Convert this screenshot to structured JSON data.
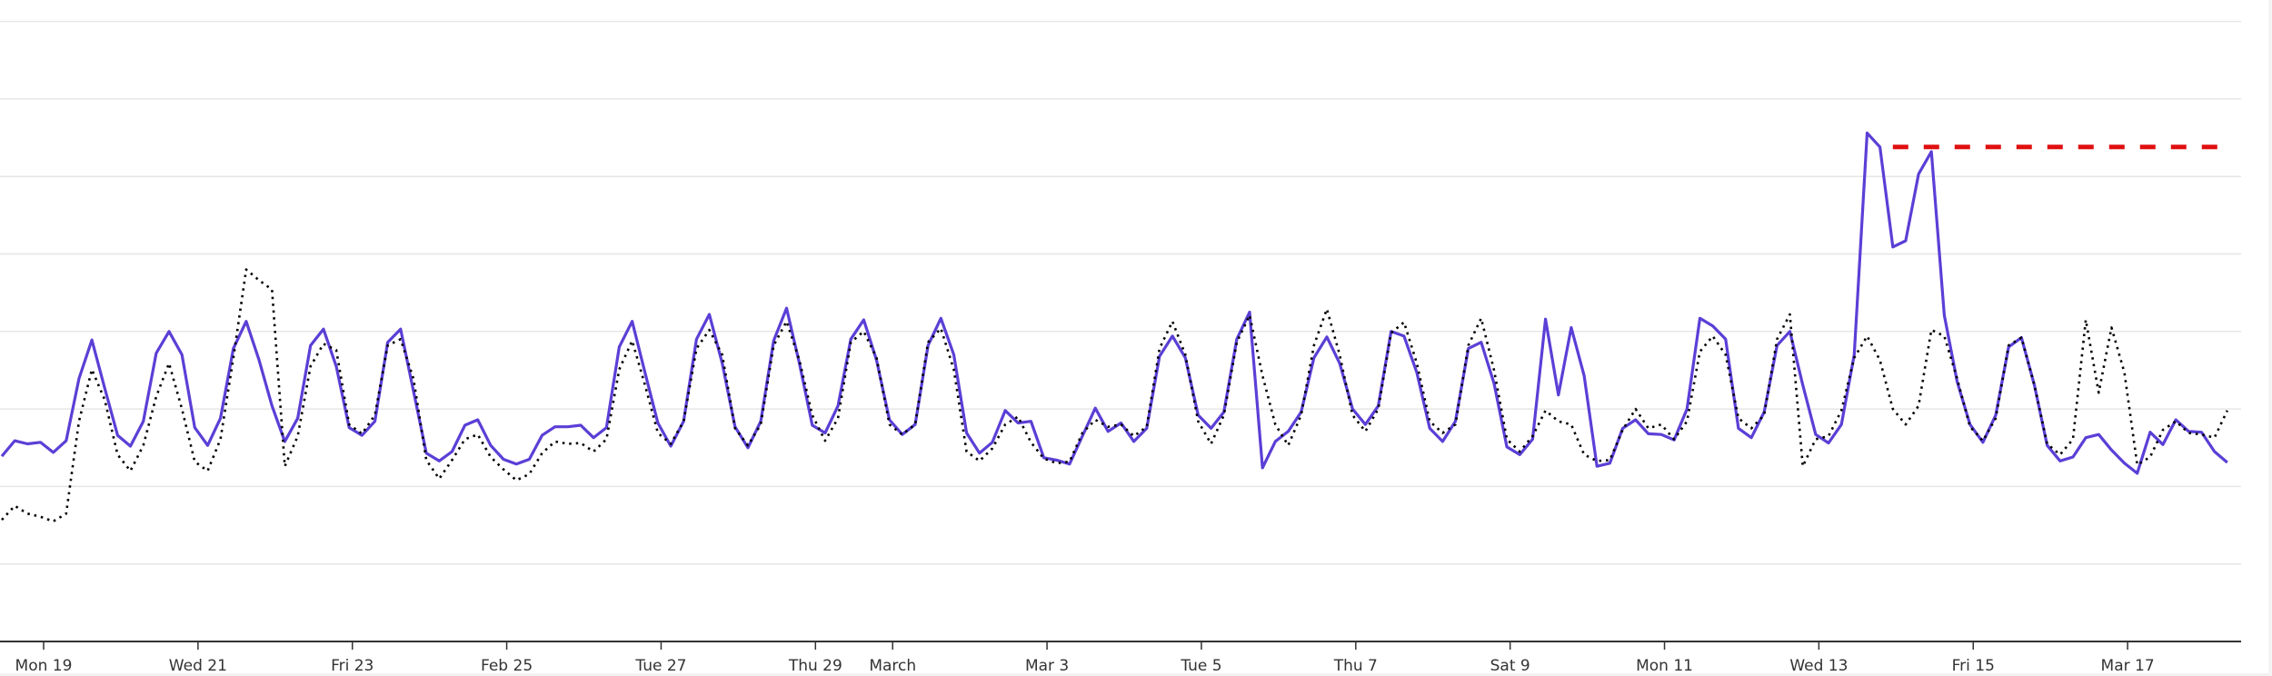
{
  "chart_data": {
    "type": "line",
    "title": "",
    "xlabel": "",
    "ylabel": "",
    "ylim": [
      0,
      8
    ],
    "grid": true,
    "y_tick_labels_shown": false,
    "x_ticks": [
      {
        "label": "Mon 19",
        "date": "2024-02-19T00:00"
      },
      {
        "label": "Wed 21",
        "date": "2024-02-21T00:00"
      },
      {
        "label": "Fri 23",
        "date": "2024-02-23T00:00"
      },
      {
        "label": "Feb 25",
        "date": "2024-02-25T00:00"
      },
      {
        "label": "Tue 27",
        "date": "2024-02-27T00:00"
      },
      {
        "label": "Thu 29",
        "date": "2024-02-29T00:00"
      },
      {
        "label": "March",
        "date": "2024-03-01T00:00"
      },
      {
        "label": "Mar 3",
        "date": "2024-03-03T00:00"
      },
      {
        "label": "Tue 5",
        "date": "2024-03-05T00:00"
      },
      {
        "label": "Thu 7",
        "date": "2024-03-07T00:00"
      },
      {
        "label": "Sat 9",
        "date": "2024-03-09T00:00"
      },
      {
        "label": "Mon 11",
        "date": "2024-03-11T00:00"
      },
      {
        "label": "Wed 13",
        "date": "2024-03-13T00:00"
      },
      {
        "label": "Fri 15",
        "date": "2024-03-15T00:00"
      },
      {
        "label": "Mar 17",
        "date": "2024-03-17T00:00"
      }
    ],
    "x": [
      "2024-02-18T11:00",
      "2024-02-18T15:00",
      "2024-02-18T19:00",
      "2024-02-18T23:00",
      "2024-02-19T03:00",
      "2024-02-19T07:00",
      "2024-02-19T11:00",
      "2024-02-19T15:00",
      "2024-02-19T19:00",
      "2024-02-19T23:00",
      "2024-02-20T03:00",
      "2024-02-20T07:00",
      "2024-02-20T11:00",
      "2024-02-20T15:00",
      "2024-02-20T19:00",
      "2024-02-20T23:00",
      "2024-02-21T03:00",
      "2024-02-21T07:00",
      "2024-02-21T11:00",
      "2024-02-21T15:00",
      "2024-02-21T19:00",
      "2024-02-21T23:00",
      "2024-02-22T03:00",
      "2024-02-22T07:00",
      "2024-02-22T11:00",
      "2024-02-22T15:00",
      "2024-02-22T19:00",
      "2024-02-22T23:00",
      "2024-02-23T03:00",
      "2024-02-23T07:00",
      "2024-02-23T11:00",
      "2024-02-23T15:00",
      "2024-02-23T19:00",
      "2024-02-23T23:00",
      "2024-02-24T03:00",
      "2024-02-24T07:00",
      "2024-02-24T11:00",
      "2024-02-24T15:00",
      "2024-02-24T19:00",
      "2024-02-24T23:00",
      "2024-02-25T03:00",
      "2024-02-25T07:00",
      "2024-02-25T11:00",
      "2024-02-25T15:00",
      "2024-02-25T19:00",
      "2024-02-25T23:00",
      "2024-02-26T03:00",
      "2024-02-26T07:00",
      "2024-02-26T11:00",
      "2024-02-26T15:00",
      "2024-02-26T19:00",
      "2024-02-26T23:00",
      "2024-02-27T03:00",
      "2024-02-27T07:00",
      "2024-02-27T11:00",
      "2024-02-27T15:00",
      "2024-02-27T19:00",
      "2024-02-27T23:00",
      "2024-02-28T03:00",
      "2024-02-28T07:00",
      "2024-02-28T11:00",
      "2024-02-28T15:00",
      "2024-02-28T19:00",
      "2024-02-28T23:00",
      "2024-02-29T03:00",
      "2024-02-29T07:00",
      "2024-02-29T11:00",
      "2024-02-29T15:00",
      "2024-02-29T19:00",
      "2024-02-29T23:00",
      "2024-03-01T03:00",
      "2024-03-01T07:00",
      "2024-03-01T11:00",
      "2024-03-01T15:00",
      "2024-03-01T19:00",
      "2024-03-01T23:00",
      "2024-03-02T03:00",
      "2024-03-02T07:00",
      "2024-03-02T11:00",
      "2024-03-02T15:00",
      "2024-03-02T19:00",
      "2024-03-02T23:00",
      "2024-03-03T03:00",
      "2024-03-03T07:00",
      "2024-03-03T11:00",
      "2024-03-03T15:00",
      "2024-03-03T19:00",
      "2024-03-03T23:00",
      "2024-03-04T03:00",
      "2024-03-04T07:00",
      "2024-03-04T11:00",
      "2024-03-04T15:00",
      "2024-03-04T19:00",
      "2024-03-04T23:00",
      "2024-03-05T03:00",
      "2024-03-05T07:00",
      "2024-03-05T11:00",
      "2024-03-05T15:00",
      "2024-03-05T19:00",
      "2024-03-05T23:00",
      "2024-03-06T03:00",
      "2024-03-06T07:00",
      "2024-03-06T11:00",
      "2024-03-06T15:00",
      "2024-03-06T19:00",
      "2024-03-06T23:00",
      "2024-03-07T03:00",
      "2024-03-07T07:00",
      "2024-03-07T11:00",
      "2024-03-07T15:00",
      "2024-03-07T19:00",
      "2024-03-07T23:00",
      "2024-03-08T03:00",
      "2024-03-08T07:00",
      "2024-03-08T11:00",
      "2024-03-08T15:00",
      "2024-03-08T19:00",
      "2024-03-08T23:00",
      "2024-03-09T03:00",
      "2024-03-09T07:00",
      "2024-03-09T11:00",
      "2024-03-09T15:00",
      "2024-03-09T19:00",
      "2024-03-09T23:00",
      "2024-03-10T03:00",
      "2024-03-10T07:00",
      "2024-03-10T11:00",
      "2024-03-10T15:00",
      "2024-03-10T19:00",
      "2024-03-10T23:00",
      "2024-03-11T03:00",
      "2024-03-11T07:00",
      "2024-03-11T11:00",
      "2024-03-11T15:00",
      "2024-03-11T19:00",
      "2024-03-11T23:00",
      "2024-03-12T03:00",
      "2024-03-12T07:00",
      "2024-03-12T11:00",
      "2024-03-12T15:00",
      "2024-03-12T19:00",
      "2024-03-12T23:00",
      "2024-03-13T03:00",
      "2024-03-13T07:00",
      "2024-03-13T11:00",
      "2024-03-13T15:00",
      "2024-03-13T19:00",
      "2024-03-13T23:00",
      "2024-03-14T03:00",
      "2024-03-14T07:00",
      "2024-03-14T11:00",
      "2024-03-14T15:00",
      "2024-03-14T19:00",
      "2024-03-14T23:00",
      "2024-03-15T03:00",
      "2024-03-15T07:00",
      "2024-03-15T11:00",
      "2024-03-15T15:00",
      "2024-03-15T19:00",
      "2024-03-15T23:00",
      "2024-03-16T03:00",
      "2024-03-16T07:00",
      "2024-03-16T11:00",
      "2024-03-16T15:00",
      "2024-03-16T19:00",
      "2024-03-16T23:00",
      "2024-03-17T03:00",
      "2024-03-17T07:00",
      "2024-03-17T11:00",
      "2024-03-17T15:00",
      "2024-03-17T19:00",
      "2024-03-17T23:00",
      "2024-03-18T03:00",
      "2024-03-18T07:00"
    ],
    "series": [
      {
        "style": "solid",
        "color": "#5b3fd6",
        "values": [
          2.39,
          2.59,
          2.55,
          2.57,
          2.44,
          2.59,
          3.39,
          3.89,
          3.27,
          2.66,
          2.52,
          2.84,
          3.72,
          4.0,
          3.7,
          2.76,
          2.53,
          2.88,
          3.78,
          4.13,
          3.63,
          3.04,
          2.58,
          2.88,
          3.82,
          4.03,
          3.55,
          2.76,
          2.66,
          2.84,
          3.86,
          4.03,
          3.23,
          2.43,
          2.33,
          2.45,
          2.79,
          2.86,
          2.53,
          2.35,
          2.29,
          2.35,
          2.66,
          2.77,
          2.77,
          2.79,
          2.63,
          2.76,
          3.8,
          4.13,
          3.47,
          2.82,
          2.52,
          2.84,
          3.9,
          4.22,
          3.59,
          2.77,
          2.5,
          2.84,
          3.88,
          4.3,
          3.59,
          2.79,
          2.69,
          3.04,
          3.9,
          4.15,
          3.63,
          2.86,
          2.67,
          2.8,
          3.82,
          4.17,
          3.7,
          2.69,
          2.43,
          2.57,
          2.98,
          2.82,
          2.84,
          2.37,
          2.34,
          2.29,
          2.65,
          3.01,
          2.71,
          2.82,
          2.58,
          2.75,
          3.68,
          3.94,
          3.66,
          2.92,
          2.75,
          2.96,
          3.9,
          4.25,
          2.24,
          2.58,
          2.71,
          2.96,
          3.66,
          3.93,
          3.59,
          3.0,
          2.8,
          3.04,
          4.0,
          3.94,
          3.47,
          2.75,
          2.58,
          2.84,
          3.78,
          3.86,
          3.33,
          2.51,
          2.41,
          2.61,
          4.16,
          3.18,
          4.05,
          3.43,
          2.26,
          2.3,
          2.75,
          2.86,
          2.68,
          2.67,
          2.6,
          3.0,
          4.17,
          4.07,
          3.9,
          2.75,
          2.63,
          2.96,
          3.82,
          4.0,
          3.31,
          2.67,
          2.56,
          2.8,
          3.7,
          6.56,
          6.38,
          5.09,
          5.17,
          6.03,
          6.32,
          4.21,
          3.35,
          2.8,
          2.57,
          2.92,
          3.8,
          3.92,
          3.31,
          2.53,
          2.33,
          2.38,
          2.63,
          2.67,
          2.47,
          2.3,
          2.17,
          2.7,
          2.54,
          2.86,
          2.71,
          2.7,
          2.45,
          2.31
        ]
      },
      {
        "style": "dotted",
        "color": "#000000",
        "values": [
          1.57,
          1.75,
          1.65,
          1.61,
          1.55,
          1.65,
          2.84,
          3.51,
          3.12,
          2.41,
          2.2,
          2.53,
          3.16,
          3.59,
          3.0,
          2.32,
          2.2,
          2.61,
          3.66,
          4.8,
          4.66,
          4.54,
          2.26,
          2.65,
          3.55,
          3.84,
          3.76,
          2.8,
          2.68,
          2.92,
          3.82,
          3.9,
          3.39,
          2.34,
          2.1,
          2.34,
          2.61,
          2.67,
          2.38,
          2.22,
          2.08,
          2.16,
          2.43,
          2.58,
          2.55,
          2.56,
          2.45,
          2.61,
          3.51,
          3.88,
          3.31,
          2.69,
          2.55,
          2.84,
          3.78,
          4.02,
          3.7,
          2.75,
          2.53,
          2.8,
          3.82,
          4.13,
          3.63,
          2.92,
          2.59,
          2.88,
          3.86,
          4.0,
          3.66,
          2.8,
          2.67,
          2.8,
          3.86,
          4.04,
          3.51,
          2.45,
          2.33,
          2.49,
          2.8,
          2.9,
          2.57,
          2.36,
          2.3,
          2.32,
          2.69,
          2.86,
          2.77,
          2.8,
          2.65,
          2.77,
          3.78,
          4.13,
          3.7,
          2.84,
          2.55,
          2.92,
          3.86,
          4.21,
          3.43,
          2.8,
          2.53,
          2.92,
          3.82,
          4.29,
          3.7,
          2.92,
          2.71,
          3.0,
          3.98,
          4.12,
          3.59,
          2.84,
          2.69,
          2.8,
          3.82,
          4.17,
          3.5,
          2.61,
          2.45,
          2.65,
          2.98,
          2.84,
          2.8,
          2.41,
          2.33,
          2.34,
          2.73,
          3.0,
          2.75,
          2.8,
          2.61,
          2.84,
          3.74,
          3.94,
          3.7,
          2.88,
          2.75,
          2.92,
          3.9,
          4.22,
          2.26,
          2.61,
          2.65,
          2.98,
          3.66,
          3.94,
          3.63,
          3.0,
          2.8,
          3.04,
          4.02,
          3.94,
          3.39,
          2.77,
          2.59,
          2.88,
          3.82,
          3.92,
          3.31,
          2.55,
          2.41,
          2.61,
          4.15,
          3.21,
          4.05,
          3.47,
          2.28,
          2.38,
          2.73,
          2.84,
          2.69,
          2.67,
          2.63,
          2.98
        ]
      }
    ],
    "threshold": {
      "style": "dashed",
      "color": "#e01010",
      "value": 6.38,
      "from": "2024-03-13T23:00",
      "to": "2024-03-18T07:00"
    },
    "colors": {
      "gridline": "#e6e6e6",
      "axis": "#333333"
    }
  }
}
